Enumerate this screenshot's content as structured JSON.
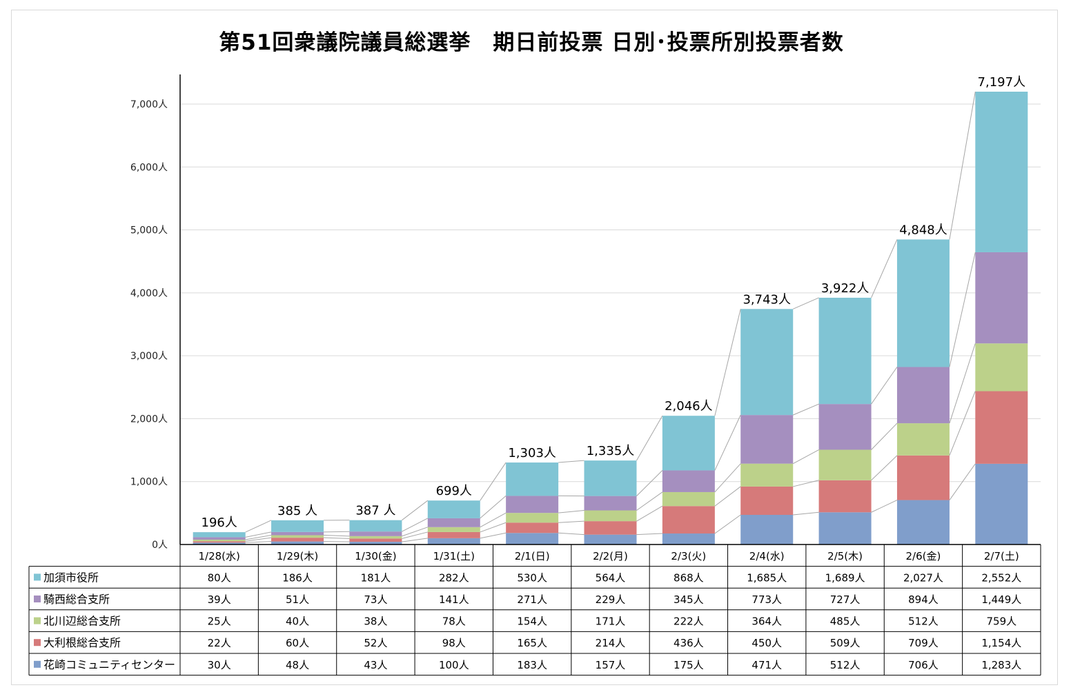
{
  "chart_data": {
    "type": "bar",
    "stacked": true,
    "title": "第51回衆議院議員総選挙　期日前投票 日別･投票所別投票者数",
    "categories": [
      "1/28(水)",
      "1/29(木)",
      "1/30(金)",
      "1/31(土)",
      "2/1(日)",
      "2/2(月)",
      "2/3(火)",
      "2/4(水)",
      "2/5(木)",
      "2/6(金)",
      "2/7(土)"
    ],
    "ylim": [
      0,
      7500
    ],
    "y_ticks": [
      0,
      1000,
      2000,
      3000,
      4000,
      5000,
      6000,
      7000
    ],
    "y_tick_labels": [
      "0人",
      "1,000人",
      "2,000人",
      "3,000人",
      "4,000人",
      "5,000人",
      "6,000人",
      "7,000人"
    ],
    "grid": true,
    "series_lines": true,
    "series": [
      {
        "name": "花崎コミュニティセンター",
        "color": "#809ecb",
        "values": [
          30,
          48,
          43,
          100,
          183,
          157,
          175,
          471,
          512,
          706,
          1283
        ],
        "labels": [
          "30人",
          "48人",
          "43人",
          "100人",
          "183人",
          "157人",
          "175人",
          "471人",
          "512人",
          "706人",
          "1,283人"
        ]
      },
      {
        "name": "大利根総合支所",
        "color": "#d67a7a",
        "values": [
          22,
          60,
          52,
          98,
          165,
          214,
          436,
          450,
          509,
          709,
          1154
        ],
        "labels": [
          "22人",
          "60人",
          "52人",
          "98人",
          "165人",
          "214人",
          "436人",
          "450人",
          "509人",
          "709人",
          "1,154人"
        ]
      },
      {
        "name": "北川辺総合支所",
        "color": "#bcd18a",
        "values": [
          25,
          40,
          38,
          78,
          154,
          171,
          222,
          364,
          485,
          512,
          759
        ],
        "labels": [
          "25人",
          "40人",
          "38人",
          "78人",
          "154人",
          "171人",
          "222人",
          "364人",
          "485人",
          "512人",
          "759人"
        ]
      },
      {
        "name": "騎西総合支所",
        "color": "#a58fbf",
        "values": [
          39,
          51,
          73,
          141,
          271,
          229,
          345,
          773,
          727,
          894,
          1449
        ],
        "labels": [
          "39人",
          "51人",
          "73人",
          "141人",
          "271人",
          "229人",
          "345人",
          "773人",
          "727人",
          "894人",
          "1,449人"
        ]
      },
      {
        "name": "加須市役所",
        "color": "#80c4d4",
        "values": [
          80,
          186,
          181,
          282,
          530,
          564,
          868,
          1685,
          1689,
          2027,
          2552
        ],
        "labels": [
          "80人",
          "186人",
          "181人",
          "282人",
          "530人",
          "564人",
          "868人",
          "1,685人",
          "1,689人",
          "2,027人",
          "2,552人"
        ]
      }
    ],
    "totals": [
      196,
      385,
      387,
      699,
      1303,
      1335,
      2046,
      3743,
      3922,
      4848,
      7197
    ],
    "total_labels": [
      "196人",
      "385 人",
      "387 人",
      "699人",
      "1,303人",
      "1,335人",
      "2,046人",
      "3,743人",
      "3,922人",
      "4,848人",
      "7,197人"
    ]
  }
}
